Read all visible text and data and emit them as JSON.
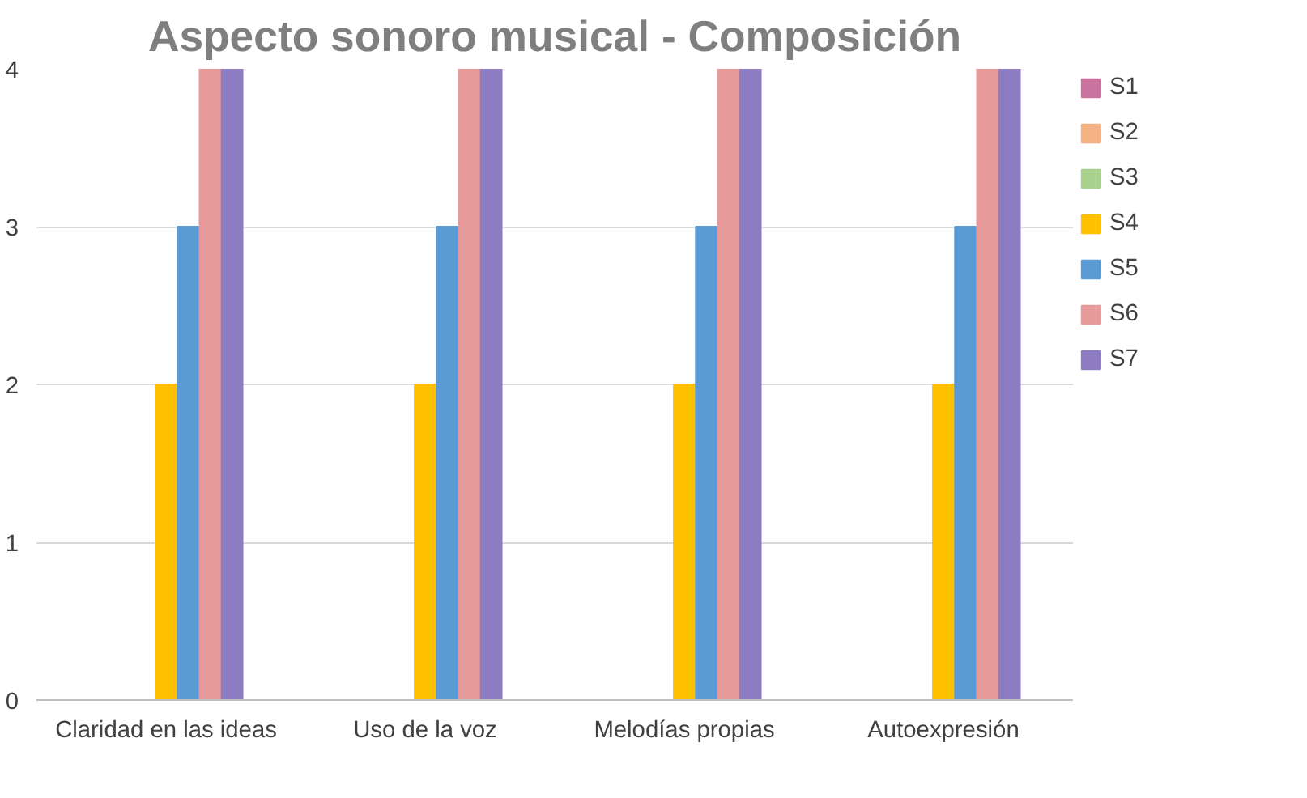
{
  "chart_data": {
    "type": "bar",
    "title": "Aspecto sonoro musical - Composición",
    "categories": [
      "Claridad en las ideas",
      "Uso de la voz",
      "Melodías propias",
      "Autoexpresión"
    ],
    "series": [
      {
        "name": "S1",
        "color": "#c9739f",
        "values": [
          0,
          0,
          0,
          0
        ]
      },
      {
        "name": "S2",
        "color": "#f4b183",
        "values": [
          0,
          0,
          0,
          0
        ]
      },
      {
        "name": "S3",
        "color": "#a9d18e",
        "values": [
          0,
          0,
          0,
          0
        ]
      },
      {
        "name": "S4",
        "color": "#ffc000",
        "values": [
          2,
          2,
          2,
          2
        ]
      },
      {
        "name": "S5",
        "color": "#5b9bd5",
        "values": [
          3,
          3,
          3,
          3
        ]
      },
      {
        "name": "S6",
        "color": "#e69a9a",
        "values": [
          4,
          4,
          4,
          4
        ]
      },
      {
        "name": "S7",
        "color": "#8e7cc3",
        "values": [
          4,
          4,
          4,
          4
        ]
      }
    ],
    "ylim": [
      0,
      4
    ],
    "yticks": [
      0,
      1,
      2,
      3,
      4
    ],
    "grid": "y",
    "legend": "right"
  }
}
